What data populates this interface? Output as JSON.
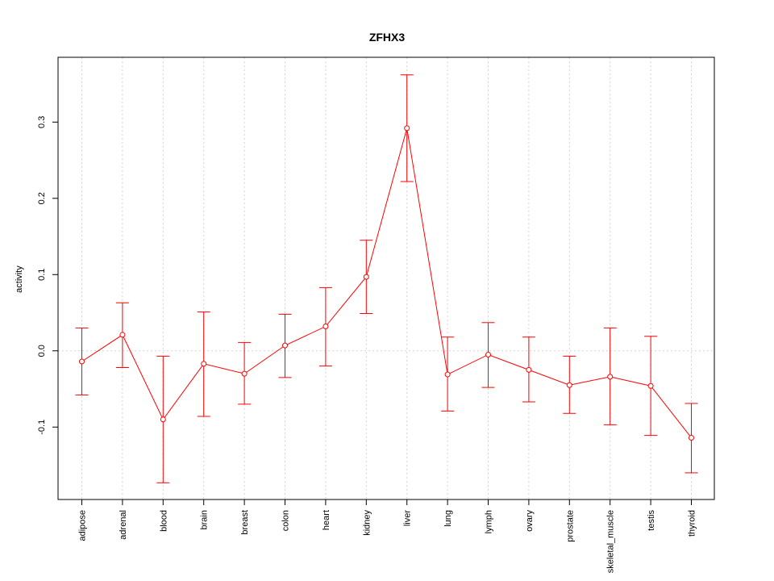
{
  "chart_data": {
    "type": "line",
    "title": "ZFHX3",
    "xlabel": "",
    "ylabel": "activity",
    "categories": [
      "adipose",
      "adrenal",
      "blood",
      "brain",
      "breast",
      "colon",
      "heart",
      "kidney",
      "liver",
      "lung",
      "lymph",
      "ovary",
      "prostate",
      "skeletal_muscle",
      "testis",
      "thyroid"
    ],
    "series": [
      {
        "values": [
          -0.014,
          0.021,
          -0.09,
          -0.017,
          -0.03,
          0.007,
          0.032,
          0.097,
          0.292,
          -0.031,
          -0.005,
          -0.025,
          -0.045,
          -0.034,
          -0.046,
          -0.114
        ],
        "lower": [
          -0.058,
          -0.022,
          -0.173,
          -0.086,
          -0.07,
          -0.035,
          -0.02,
          0.049,
          0.222,
          -0.079,
          -0.048,
          -0.067,
          -0.082,
          -0.097,
          -0.111,
          -0.16
        ],
        "upper": [
          0.03,
          0.063,
          -0.007,
          0.051,
          0.011,
          0.048,
          0.083,
          0.145,
          0.362,
          0.018,
          0.037,
          0.018,
          -0.007,
          0.03,
          0.019,
          -0.069
        ]
      }
    ],
    "yticks": [
      "-0.1",
      "0.0",
      "0.1",
      "0.2",
      "0.3"
    ],
    "yticks_values": [
      -0.1,
      0.0,
      0.1,
      0.2,
      0.3
    ],
    "ylim": [
      -0.195,
      0.385
    ],
    "grid": true,
    "colors": {
      "series": "#ff0000",
      "grid": "#d3d3d3",
      "axis": "#000000"
    }
  }
}
